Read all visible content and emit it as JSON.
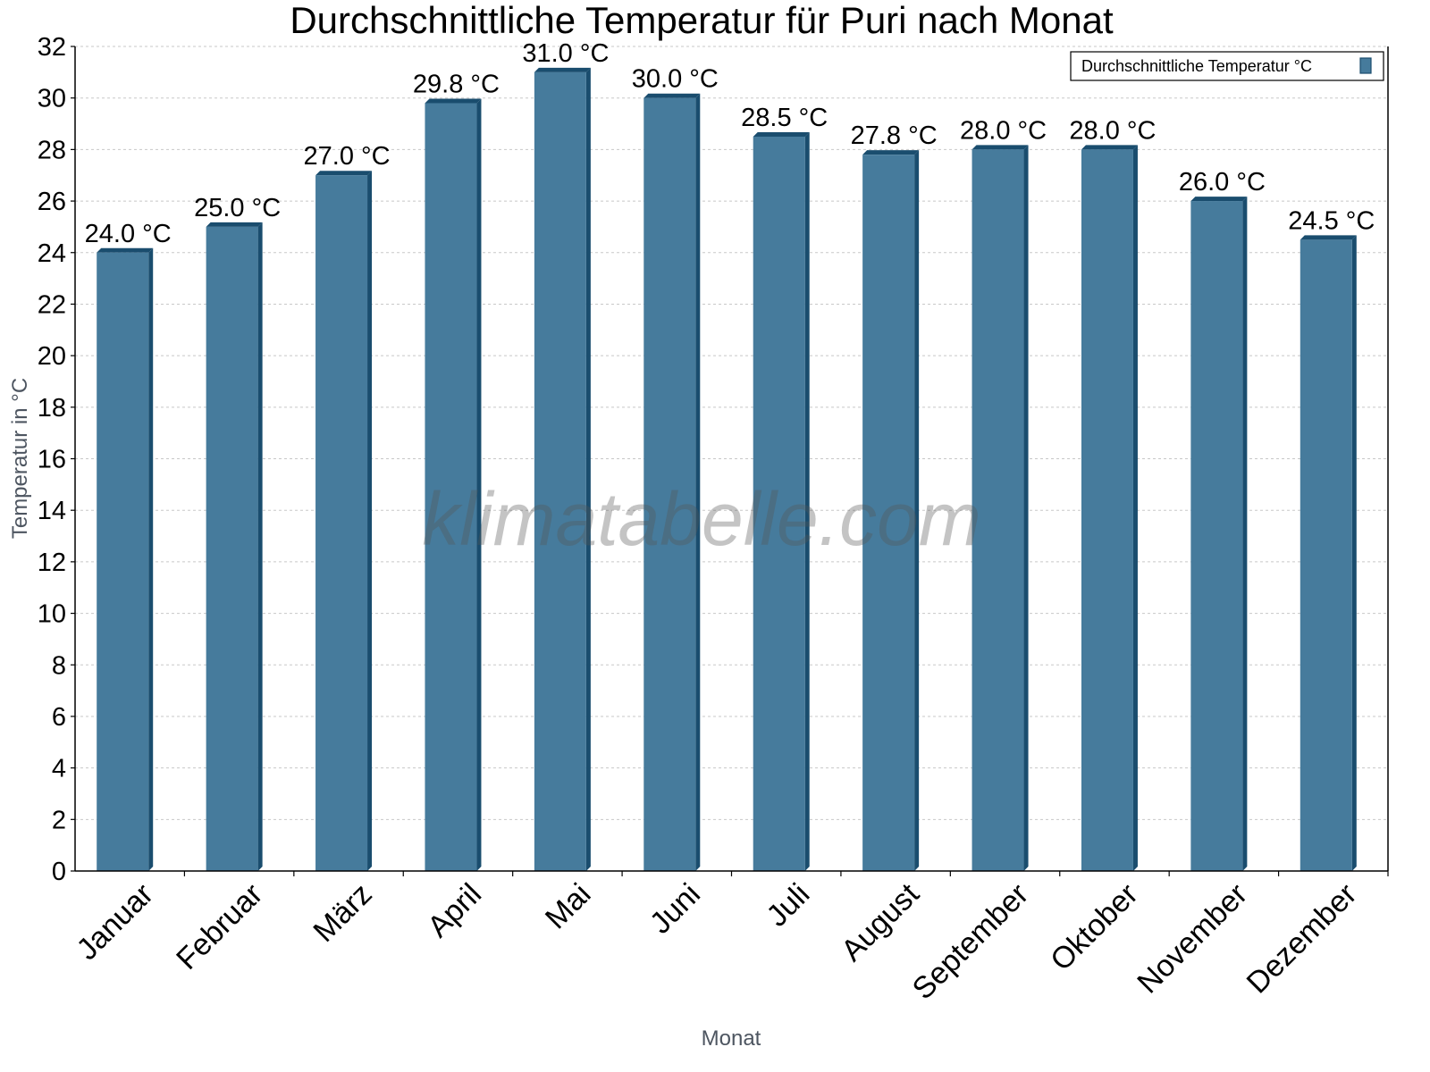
{
  "chart_data": {
    "type": "bar",
    "title": "Durchschnittliche Temperatur für Puri nach Monat",
    "xlabel": "Monat",
    "ylabel": "Temperatur in °C",
    "ylim": [
      0,
      32
    ],
    "yticks": [
      0,
      2,
      4,
      6,
      8,
      10,
      12,
      14,
      16,
      18,
      20,
      22,
      24,
      26,
      28,
      30,
      32
    ],
    "grid": true,
    "legend_position": "top-right",
    "categories": [
      "Januar",
      "Februar",
      "März",
      "April",
      "Mai",
      "Juni",
      "Juli",
      "August",
      "September",
      "Oktober",
      "November",
      "Dezember"
    ],
    "series": [
      {
        "name": "Durchschnittliche Temperatur °C",
        "values": [
          24.0,
          25.0,
          27.0,
          29.8,
          31.0,
          30.0,
          28.5,
          27.8,
          28.0,
          28.0,
          26.0,
          24.5
        ],
        "labels": [
          "24.0 °C",
          "25.0 °C",
          "27.0 °C",
          "29.8 °C",
          "31.0 °C",
          "30.0 °C",
          "28.5 °C",
          "27.8 °C",
          "28.0 °C",
          "28.0 °C",
          "26.0 °C",
          "24.5 °C"
        ],
        "color": "#467b9c",
        "shade_color": "#1a4d6e"
      }
    ],
    "watermark": "klimatabelle.com"
  }
}
